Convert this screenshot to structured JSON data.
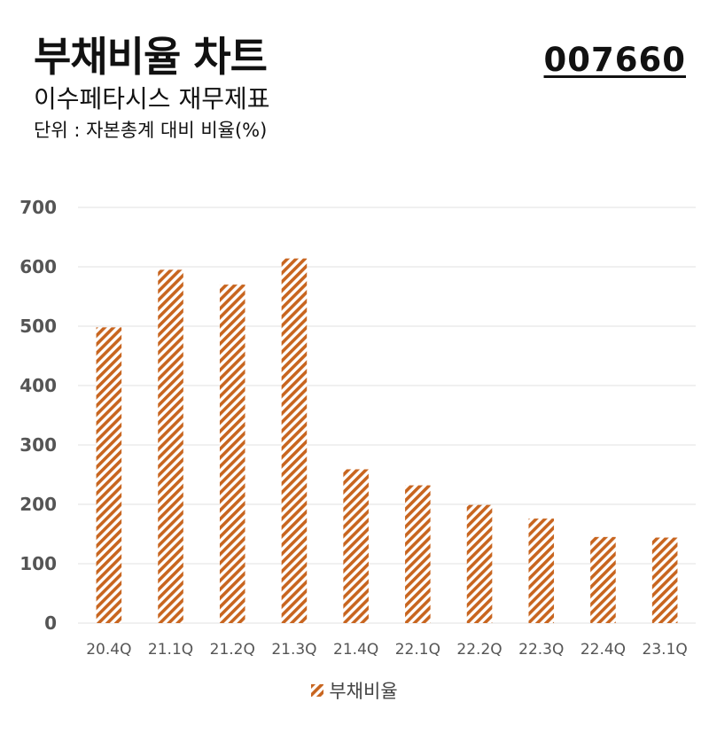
{
  "header": {
    "title": "부채비율 차트",
    "subtitle": "이수페타시스 재무제표",
    "unit": "단위 : 자본총계 대비 비율(%)",
    "code": "007660"
  },
  "colors": {
    "bar": "#c8651f",
    "grid": "#e2e2e2",
    "tick_text": "#555555"
  },
  "chart_data": {
    "type": "bar",
    "categories": [
      "20.4Q",
      "21.1Q",
      "21.2Q",
      "21.3Q",
      "21.4Q",
      "22.1Q",
      "22.2Q",
      "22.3Q",
      "22.4Q",
      "23.1Q"
    ],
    "series": [
      {
        "name": "부채비율",
        "values": [
          498,
          595,
          570,
          614,
          259,
          232,
          199,
          176,
          145,
          144
        ]
      }
    ],
    "ylim": [
      0,
      700
    ],
    "yticks": [
      0,
      100,
      200,
      300,
      400,
      500,
      600,
      700
    ],
    "bar_pattern": "diagonal-stripes",
    "grid": true,
    "legend_position": "bottom"
  }
}
